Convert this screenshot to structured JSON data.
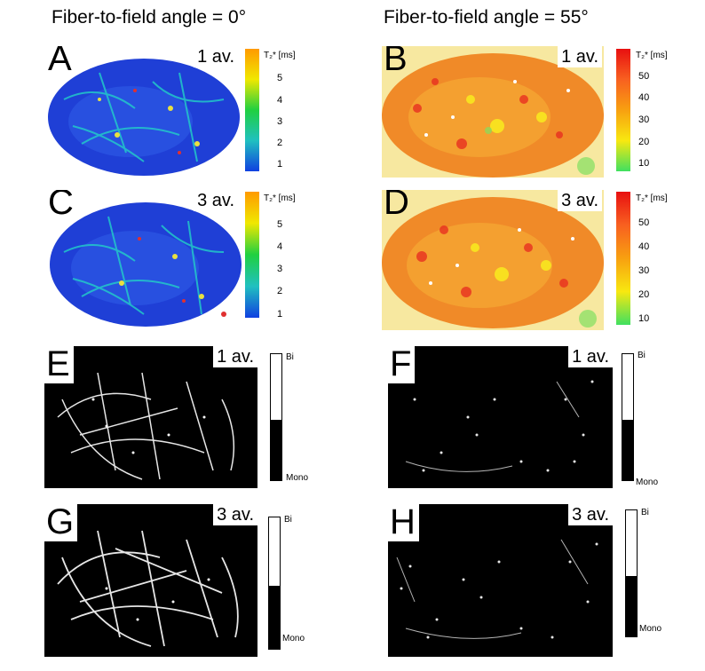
{
  "headings": {
    "left": "Fiber-to-field angle = 0°",
    "right": "Fiber-to-field angle = 55°"
  },
  "colorbar_title": "T₂* [ms]",
  "colorbar_left_ticks": [
    "5",
    "4",
    "3",
    "2",
    "1"
  ],
  "colorbar_right_ticks": [
    "50",
    "40",
    "30",
    "20",
    "10"
  ],
  "binary_legend": {
    "top": "Bi",
    "bottom": "Mono"
  },
  "panels": {
    "A": {
      "letter": "A",
      "avg": "1 av."
    },
    "B": {
      "letter": "B",
      "avg": "1 av."
    },
    "C": {
      "letter": "C",
      "avg": "3 av."
    },
    "D": {
      "letter": "D",
      "avg": "3 av."
    },
    "E": {
      "letter": "E",
      "avg": "1 av."
    },
    "F": {
      "letter": "F",
      "avg": "1 av."
    },
    "G": {
      "letter": "G",
      "avg": "3 av."
    },
    "H": {
      "letter": "H",
      "avg": "3 av."
    }
  },
  "colors": {
    "blue_map": "#1f3fd6",
    "warm_map": "#f08a28",
    "binary_bg": "#000000"
  }
}
